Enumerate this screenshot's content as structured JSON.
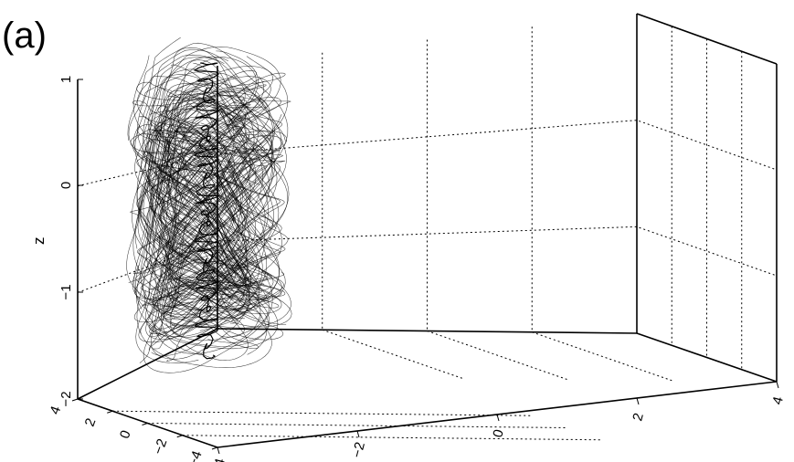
{
  "panel_label": "(a)",
  "chart_data": {
    "type": "line",
    "projection": "3d",
    "title": "",
    "xlabel": "",
    "ylabel": "",
    "zlabel": "z",
    "z_ticks": [
      "1",
      "0",
      "−1",
      "−2"
    ],
    "x_ticks": [
      "−4",
      "−2",
      "0",
      "2",
      "4"
    ],
    "y_ticks": [
      "−4",
      "−2",
      "0",
      "2",
      "4"
    ],
    "xlim": [
      -4,
      4
    ],
    "ylim": [
      -4,
      4
    ],
    "zlim": [
      -2,
      1
    ],
    "grid": true,
    "series": [
      {
        "kind": "trajectory",
        "color": "#000000"
      }
    ]
  }
}
